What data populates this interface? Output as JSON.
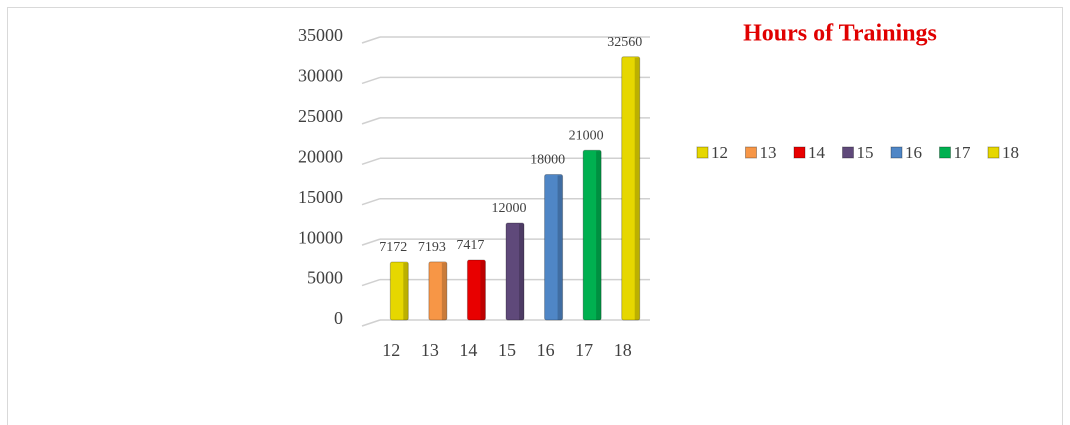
{
  "chart_data": {
    "type": "bar",
    "title": "Hours of Trainings",
    "categories": [
      "12",
      "13",
      "14",
      "15",
      "16",
      "17",
      "18"
    ],
    "values": [
      7172,
      7193,
      7417,
      12000,
      18000,
      21000,
      32560
    ],
    "colors": [
      "#e6d700",
      "#f79646",
      "#e80000",
      "#5f497a",
      "#4f86c6",
      "#00b050",
      "#e6d700"
    ],
    "ylim": [
      0,
      35000
    ],
    "yticks": [
      0,
      5000,
      10000,
      15000,
      20000,
      25000,
      30000,
      35000
    ],
    "grid": true,
    "legend": "right"
  }
}
